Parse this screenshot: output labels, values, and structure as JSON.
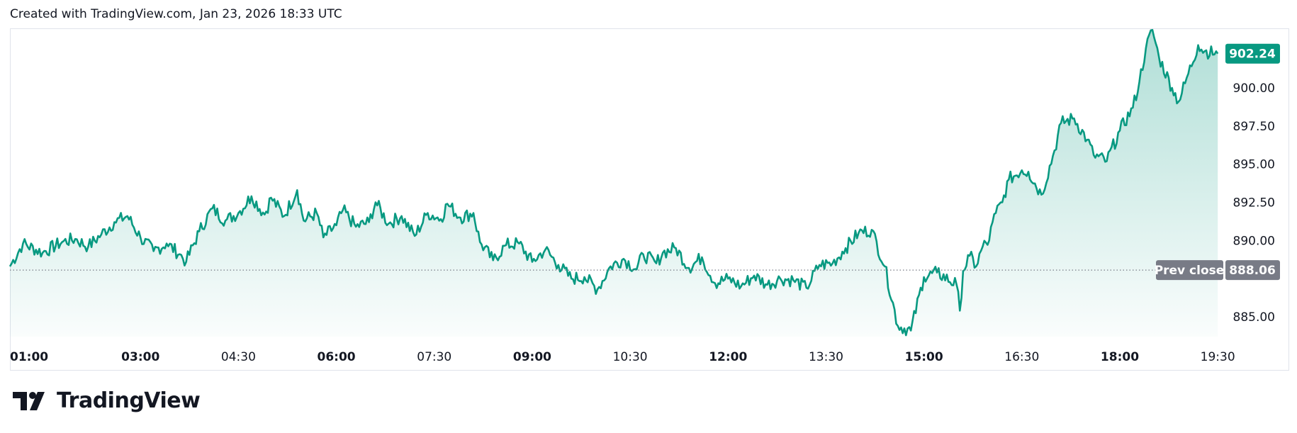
{
  "header": {
    "created_text": "Created with TradingView.com, Jan 23, 2026 18:33 UTC"
  },
  "brand": {
    "logo_text": "TradingView"
  },
  "colors": {
    "line": "#089981",
    "prev_close_badge": "#787b86",
    "last_price_badge": "#089981"
  },
  "price_axis": {
    "labels": [
      "902.24",
      "900.00",
      "897.50",
      "895.00",
      "892.50",
      "890.00",
      "885.00"
    ]
  },
  "prev_close": {
    "label": "Prev close",
    "value": "888.06"
  },
  "last_price": {
    "value": "902.24"
  },
  "chart_data": {
    "type": "area",
    "title": "",
    "xlabel": "",
    "ylabel": "",
    "ylim": [
      883.7,
      903.9
    ],
    "grid": false,
    "x_ticks": [
      {
        "label": "01:00",
        "bold": true
      },
      {
        "label": "03:00",
        "bold": true
      },
      {
        "label": "04:30",
        "bold": false
      },
      {
        "label": "06:00",
        "bold": true
      },
      {
        "label": "07:30",
        "bold": false
      },
      {
        "label": "09:00",
        "bold": true
      },
      {
        "label": "10:30",
        "bold": false
      },
      {
        "label": "12:00",
        "bold": true
      },
      {
        "label": "13:30",
        "bold": false
      },
      {
        "label": "15:00",
        "bold": true
      },
      {
        "label": "16:30",
        "bold": false
      },
      {
        "label": "18:00",
        "bold": true
      },
      {
        "label": "19:30",
        "bold": false
      }
    ],
    "x_ticks_hours": [
      1,
      3,
      4.5,
      6,
      7.5,
      9,
      10.5,
      12,
      13.5,
      15,
      16.5,
      18,
      19.5
    ],
    "series": [
      {
        "x": [
          1.0,
          1.2,
          1.5,
          1.8,
          2.0,
          2.2,
          2.4,
          2.6,
          2.8,
          3.0,
          3.2,
          3.4,
          3.6,
          3.7,
          3.9,
          4.1,
          4.3,
          4.5,
          4.7,
          4.9,
          5.0,
          5.2,
          5.4,
          5.5,
          5.7,
          5.8,
          6.0,
          6.1,
          6.3,
          6.5,
          6.6,
          6.8,
          7.0,
          7.2,
          7.4,
          7.6,
          7.7,
          7.9,
          8.1,
          8.2,
          8.4,
          8.6,
          8.8,
          9.0,
          9.2,
          9.4,
          9.6,
          9.8,
          10.0,
          10.2,
          10.4,
          10.6,
          10.7,
          10.9,
          11.0,
          11.2,
          11.4,
          11.6,
          11.8,
          12.0,
          12.2,
          12.4,
          12.6,
          12.8,
          13.0,
          13.2,
          13.4,
          13.6,
          13.8,
          14.0,
          14.2,
          14.4,
          14.6,
          14.8,
          15.0,
          15.2,
          15.5,
          15.55,
          15.6,
          15.7,
          15.8,
          15.9,
          16.0,
          16.05,
          16.1,
          16.2,
          16.3,
          16.5,
          16.6,
          16.8,
          17.0,
          17.1,
          17.3,
          17.5,
          17.6,
          17.8,
          18.0,
          18.2,
          18.3,
          18.4,
          18.5,
          18.6,
          18.8,
          18.9,
          19.0,
          19.2,
          19.3,
          19.5
        ],
        "y": [
          888.3,
          889.8,
          889.2,
          889.9,
          890.1,
          889.6,
          890.4,
          891.2,
          891.6,
          890.2,
          889.3,
          889.8,
          889.1,
          888.6,
          890.6,
          892.1,
          891.3,
          891.8,
          892.9,
          891.7,
          892.8,
          891.6,
          893.3,
          891.3,
          891.8,
          890.2,
          891.0,
          892.0,
          890.9,
          891.2,
          892.5,
          891.1,
          891.6,
          890.3,
          891.8,
          891.4,
          892.4,
          891.5,
          891.8,
          889.9,
          888.7,
          889.7,
          889.8,
          888.6,
          889.4,
          888.4,
          887.5,
          887.6,
          886.8,
          888.3,
          888.8,
          888.1,
          889.1,
          888.5,
          889.2,
          889.5,
          888.2,
          888.9,
          887.2,
          887.5,
          887.0,
          887.7,
          887.1,
          887.5,
          887.4,
          886.9,
          888.4,
          888.5,
          889.5,
          890.5,
          890.7,
          888.3,
          884.4,
          884.1,
          887.6,
          887.9,
          887.1,
          885.4,
          888.0,
          889.0,
          888.3,
          889.6,
          890.0,
          891.2,
          891.8,
          892.5,
          894.0,
          894.6,
          894.5,
          893.0,
          895.9,
          897.7,
          898.0,
          896.6,
          895.6,
          895.2,
          897.2,
          898.7,
          900.4,
          902.6,
          903.8,
          902.0,
          900.0,
          899.1,
          900.3,
          902.8,
          902.4,
          902.24
        ]
      }
    ],
    "prev_close": 888.06
  }
}
